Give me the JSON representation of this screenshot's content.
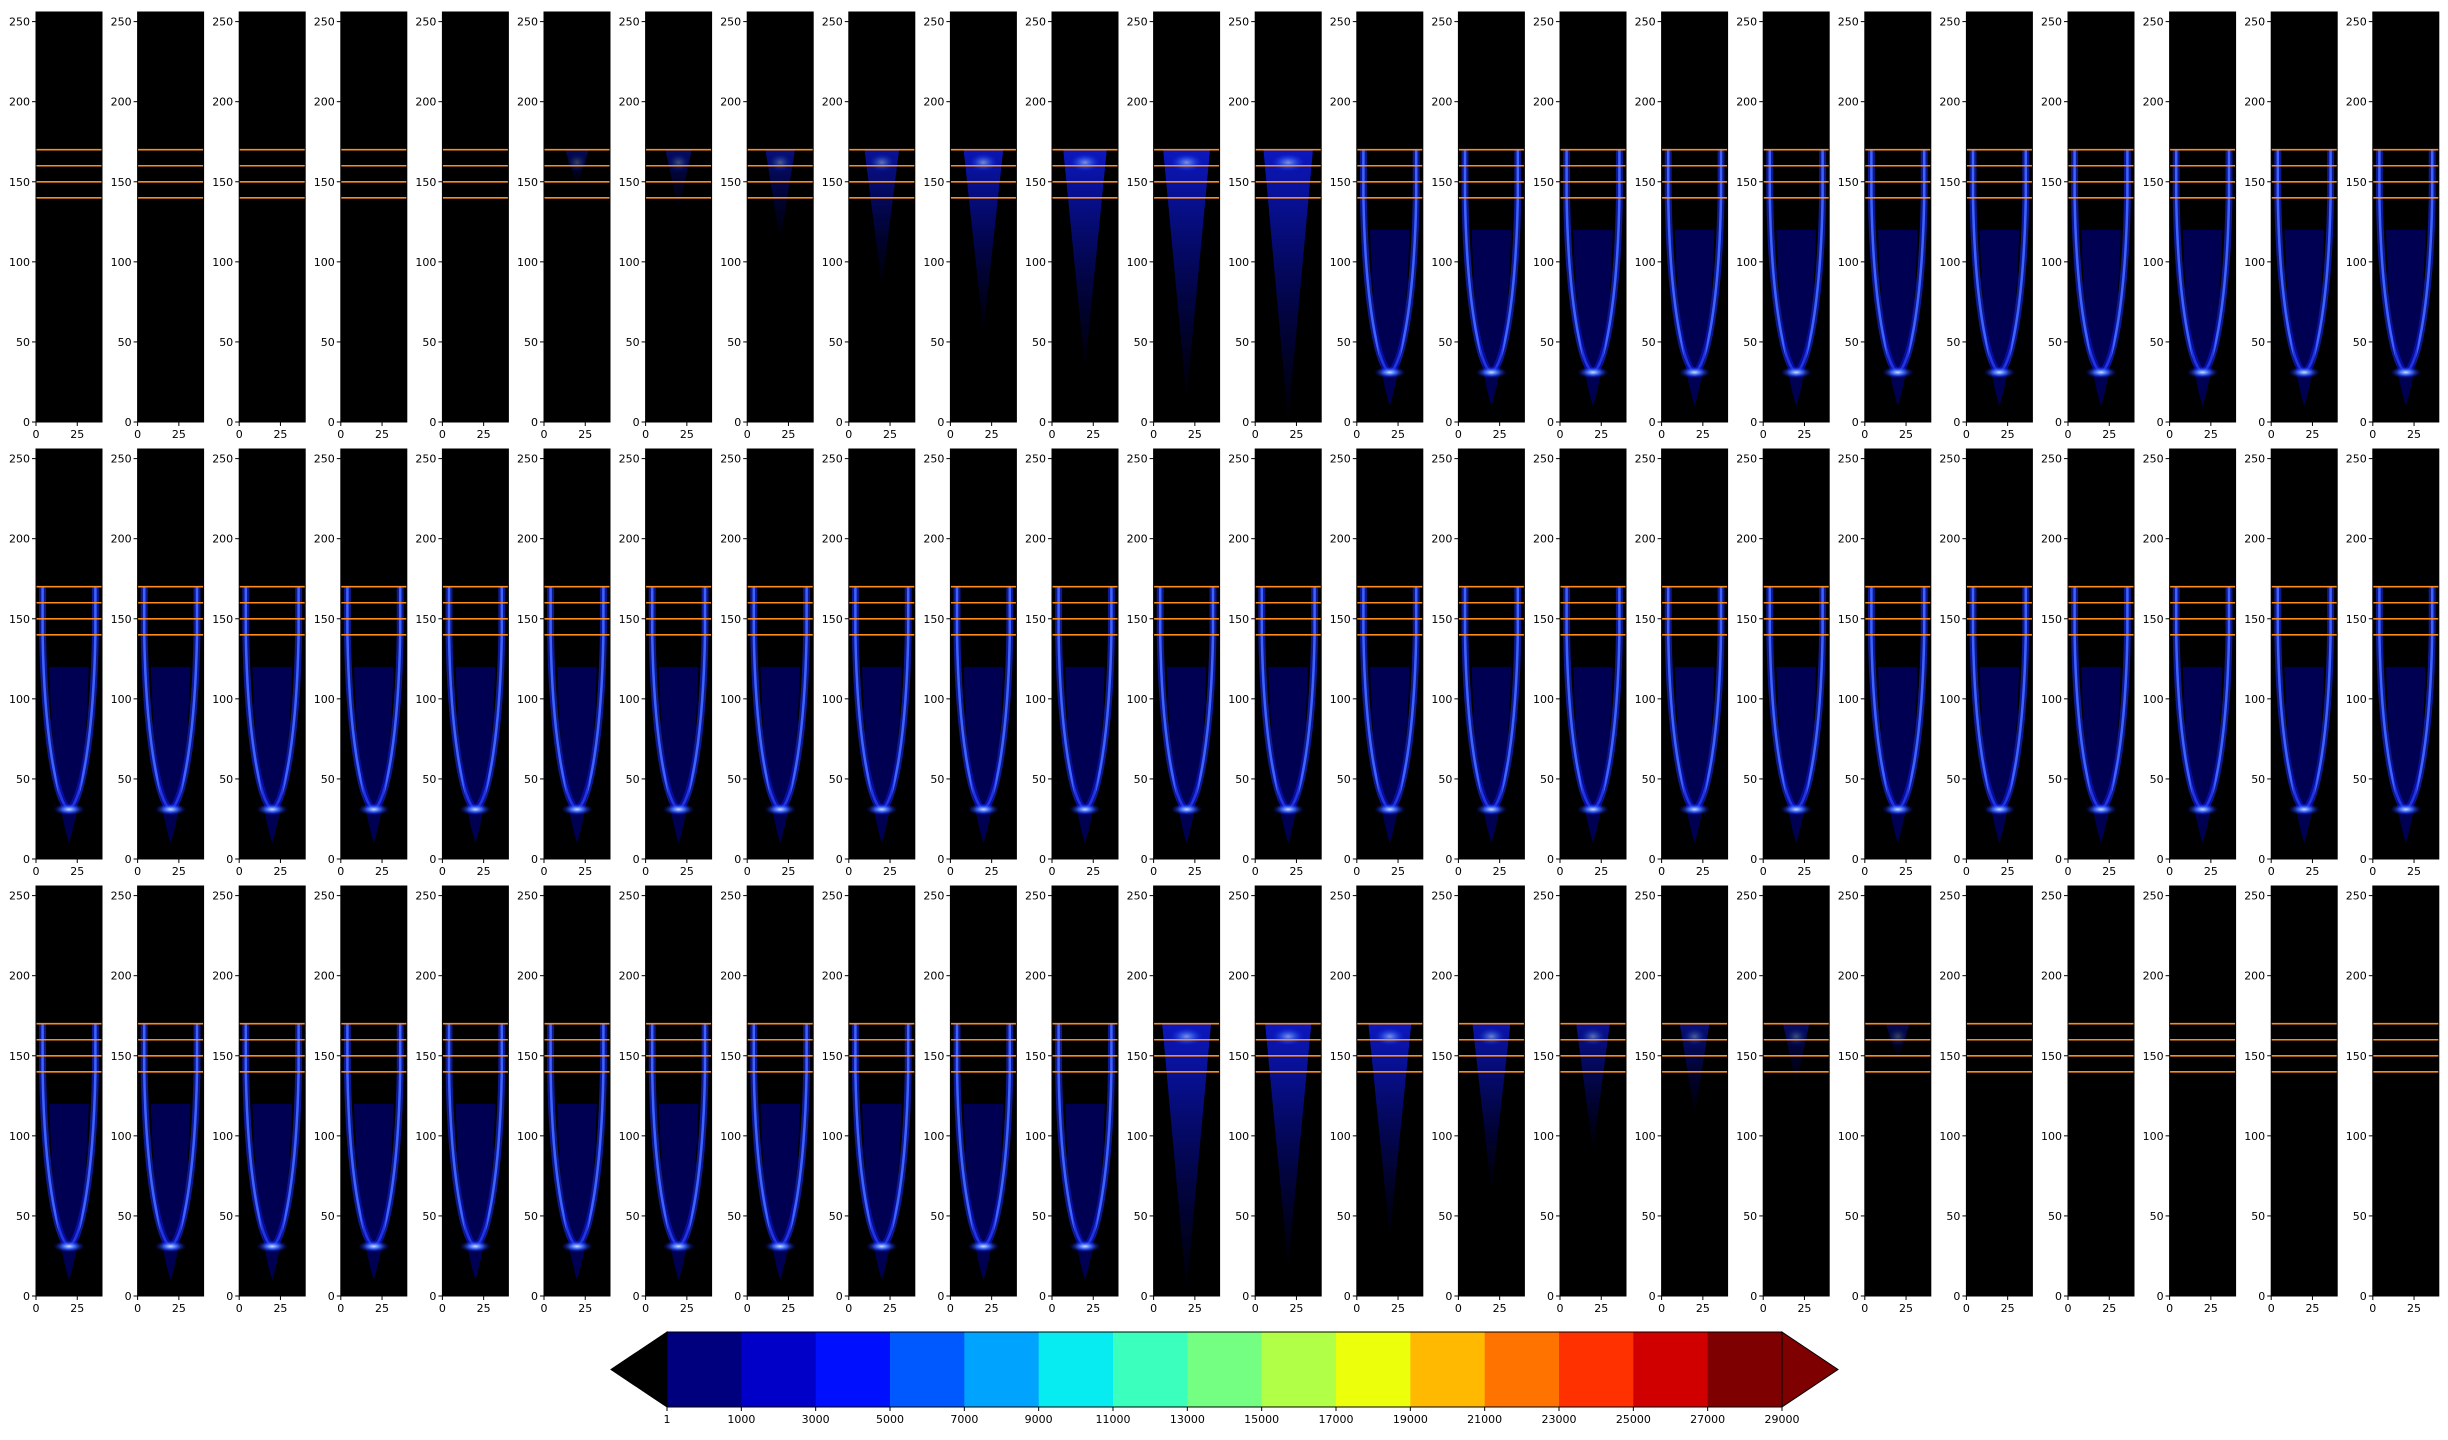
{
  "chart_data": {
    "type": "heatmap",
    "layout": {
      "rows": 3,
      "cols": 24,
      "panel_count": 72
    },
    "panel_axes": {
      "xlim": [
        0,
        40
      ],
      "ylim": [
        0,
        256
      ],
      "xticks": [
        0,
        25
      ],
      "yticks": [
        0,
        50,
        100,
        150,
        200,
        250
      ],
      "background": "#000000"
    },
    "reference_lines": {
      "y_values": [
        140,
        150,
        160,
        170
      ],
      "color": "#ff8c1a"
    },
    "panel_intensity": [
      0,
      0,
      0,
      0,
      0,
      0.12,
      0.2,
      0.3,
      0.45,
      0.6,
      0.72,
      0.82,
      0.9,
      0.95,
      1,
      1,
      1,
      1,
      1,
      1,
      1,
      1,
      1,
      1,
      1,
      1,
      1,
      1,
      1,
      1,
      1,
      1,
      1,
      1,
      1,
      1,
      1,
      1,
      1,
      1,
      1,
      1,
      1,
      1,
      1,
      1,
      1,
      1,
      1,
      1,
      1,
      1,
      1,
      1,
      1,
      1,
      1,
      1,
      0.95,
      0.88,
      0.8,
      0.7,
      0.55,
      0.42,
      0.3,
      0.2,
      0.12,
      0,
      0,
      0,
      0,
      0
    ],
    "colorbar": {
      "colormap": "jet",
      "extend": "both",
      "ticks": [
        1,
        1000,
        3000,
        5000,
        7000,
        9000,
        11000,
        13000,
        15000,
        17000,
        19000,
        21000,
        23000,
        25000,
        27000,
        29000
      ],
      "colors": [
        "#00007f",
        "#0000c8",
        "#0010ff",
        "#0058ff",
        "#00a4ff",
        "#06ecf1",
        "#3affbd",
        "#74ff83",
        "#b1ff46",
        "#ecff0b",
        "#ffb900",
        "#ff7300",
        "#ff3100",
        "#d10000",
        "#7f0000"
      ],
      "under_color": "#000000",
      "over_color": "#7f0000"
    }
  }
}
